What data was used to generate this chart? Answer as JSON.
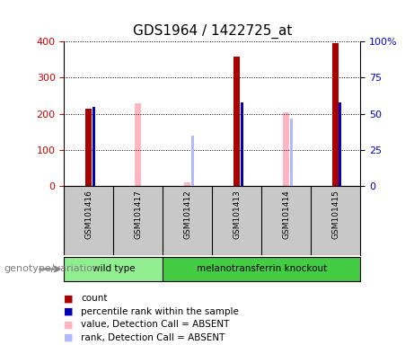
{
  "title": "GDS1964 / 1422725_at",
  "samples": [
    "GSM101416",
    "GSM101417",
    "GSM101412",
    "GSM101413",
    "GSM101414",
    "GSM101415"
  ],
  "count_values": [
    215,
    null,
    null,
    357,
    null,
    395
  ],
  "rank_values": [
    55,
    null,
    null,
    58,
    null,
    58
  ],
  "absent_value_values": [
    null,
    230,
    10,
    null,
    205,
    null
  ],
  "absent_rank_values": [
    null,
    null,
    35,
    null,
    47,
    null
  ],
  "ylim_left": [
    0,
    400
  ],
  "ylim_right": [
    0,
    100
  ],
  "yticks_left": [
    0,
    100,
    200,
    300,
    400
  ],
  "yticks_right": [
    0,
    25,
    50,
    75,
    100
  ],
  "yticklabels_right": [
    "0",
    "25",
    "50",
    "75",
    "100%"
  ],
  "groups": [
    {
      "label": "wild type",
      "indices": [
        0,
        1
      ],
      "color": "#90EE90"
    },
    {
      "label": "melanotransferrin knockout",
      "indices": [
        2,
        3,
        4,
        5
      ],
      "color": "#44CC44"
    }
  ],
  "count_color": "#AA0000",
  "rank_color": "#0000BB",
  "absent_value_color": "#FFB6C1",
  "absent_rank_color": "#B0B8FF",
  "bg_color": "#FFFFFF",
  "tick_label_color_left": "#CC0000",
  "tick_label_color_right": "#0000CC",
  "sample_bg_color": "#C8C8C8",
  "legend_items": [
    {
      "label": "count",
      "color": "#AA0000"
    },
    {
      "label": "percentile rank within the sample",
      "color": "#0000BB"
    },
    {
      "label": "value, Detection Call = ABSENT",
      "color": "#FFB6C1"
    },
    {
      "label": "rank, Detection Call = ABSENT",
      "color": "#B0B8FF"
    }
  ],
  "genotype_label": "genotype/variation"
}
